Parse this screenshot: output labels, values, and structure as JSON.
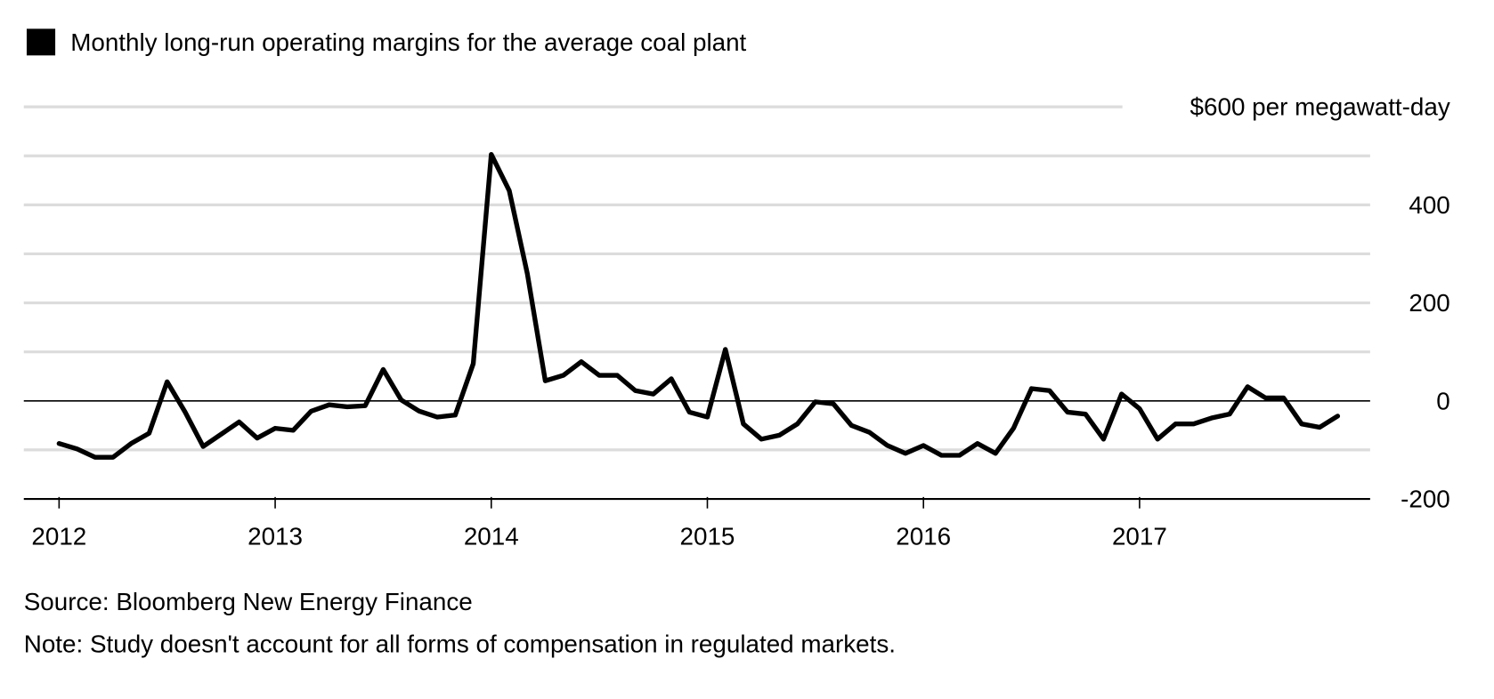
{
  "legend": {
    "label": "Monthly long-run operating margins for the average coal plant",
    "color": "#000000"
  },
  "footer": {
    "source": "Source: Bloomberg New Energy Finance",
    "note": "Note: Study doesn't account for all forms of compensation in regulated markets."
  },
  "chart_data": {
    "type": "line",
    "title": "",
    "xlabel": "",
    "ylabel": "",
    "y_unit_label": "$600 per megawatt-day",
    "ylim": [
      -200,
      600
    ],
    "xlim": [
      "2012-01",
      "2017-12"
    ],
    "y_ticks": [
      {
        "value": 600,
        "label": "$600 per megawatt-day"
      },
      {
        "value": 400,
        "label": "400"
      },
      {
        "value": 200,
        "label": "200"
      },
      {
        "value": 0,
        "label": "0"
      },
      {
        "value": -200,
        "label": "-200"
      }
    ],
    "x_ticks": [
      {
        "value": 2012,
        "label": "2012"
      },
      {
        "value": 2013,
        "label": "2013"
      },
      {
        "value": 2014,
        "label": "2014"
      },
      {
        "value": 2015,
        "label": "2015"
      },
      {
        "value": 2016,
        "label": "2016"
      },
      {
        "value": 2017,
        "label": "2017"
      }
    ],
    "grid": true,
    "legend_position": "top-left",
    "series": [
      {
        "name": "Monthly long-run operating margins for the average coal plant",
        "color": "#000000",
        "start": "2012-01",
        "frequency": "monthly",
        "values": [
          -87,
          -98,
          -115,
          -115,
          -87,
          -66,
          39,
          -23,
          -93,
          -68,
          -43,
          -76,
          -56,
          -60,
          -21,
          -8,
          -12,
          -10,
          64,
          2,
          -21,
          -33,
          -29,
          76,
          503,
          429,
          260,
          41,
          52,
          80,
          52,
          52,
          21,
          14,
          45,
          -23,
          -33,
          105,
          -47,
          -78,
          -70,
          -47,
          -2,
          -6,
          -50,
          -64,
          -91,
          -107,
          -91,
          -111,
          -111,
          -87,
          -107,
          -56,
          25,
          21,
          -23,
          -27,
          -78,
          14,
          -16,
          -78,
          -47,
          -47,
          -35,
          -27,
          29,
          6,
          6,
          -47,
          -54,
          -31
        ]
      }
    ]
  }
}
